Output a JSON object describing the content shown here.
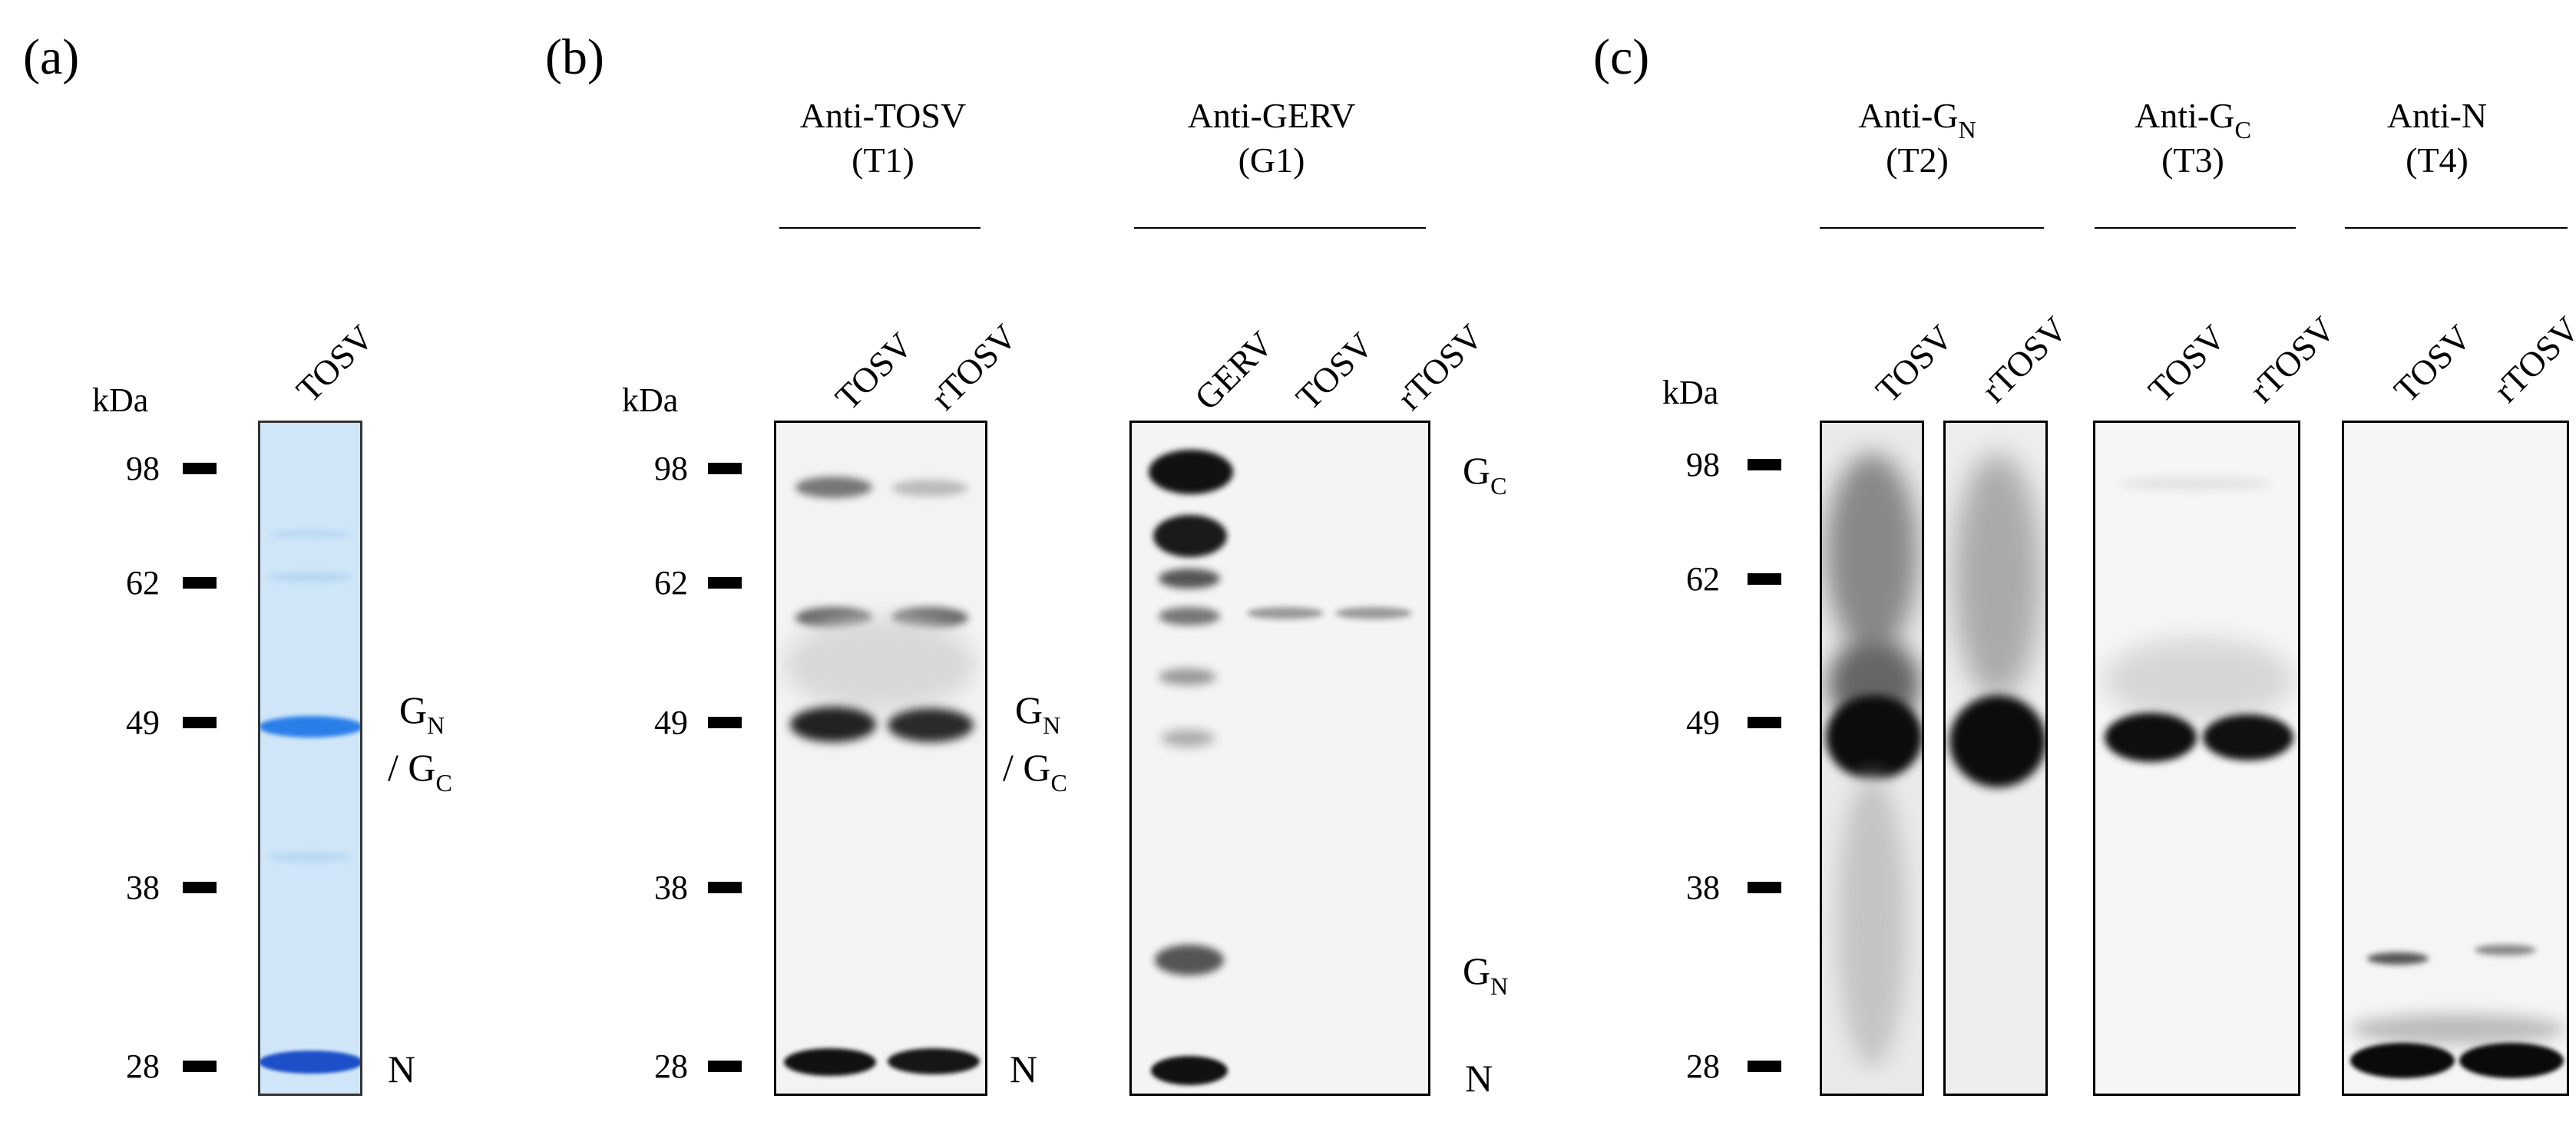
{
  "panels": [
    {
      "id": "a",
      "label": "(a)"
    },
    {
      "id": "b",
      "label": "(b)"
    },
    {
      "id": "c",
      "label": "(c)"
    }
  ],
  "unit": "kDa",
  "markers": [
    "98",
    "62",
    "49",
    "38",
    "28"
  ],
  "panel_a": {
    "lane": "TOSV",
    "bands": {
      "gn": "G",
      "gn_sub": "N",
      "gc_prefix": "/ G",
      "gc_sub": "C",
      "n": "N"
    }
  },
  "panel_b": {
    "groups": [
      {
        "line1": "Anti-TOSV",
        "line2": "(T1)",
        "lanes": [
          "TOSV",
          "rTOSV"
        ]
      },
      {
        "line1": "Anti-GERV",
        "line2": "(G1)",
        "lanes": [
          "GERV",
          "TOSV",
          "rTOSV"
        ]
      }
    ],
    "left_bands": {
      "gn": "G",
      "gn_sub": "N",
      "gc_prefix": "/ G",
      "gc_sub": "C",
      "n": "N"
    },
    "right_bands": {
      "gc": "G",
      "gc_sub": "C",
      "gn": "G",
      "gn_sub": "N",
      "n": "N"
    }
  },
  "panel_c": {
    "groups": [
      {
        "line1": "Anti-G",
        "line1_sub": "N",
        "line2": "(T2)",
        "lanes": [
          "TOSV",
          "rTOSV"
        ]
      },
      {
        "line1": "Anti-G",
        "line1_sub": "C",
        "line2": "(T3)",
        "lanes": [
          "TOSV",
          "rTOSV"
        ]
      },
      {
        "line1": "Anti-N",
        "line1_sub": "",
        "line2": "(T4)",
        "lanes": [
          "TOSV",
          "rTOSV"
        ]
      }
    ]
  },
  "colors": {
    "coomassie_bg": "#cfe6f8",
    "coomassie_band": "#2a6fd6",
    "blot_band": "#111111"
  }
}
